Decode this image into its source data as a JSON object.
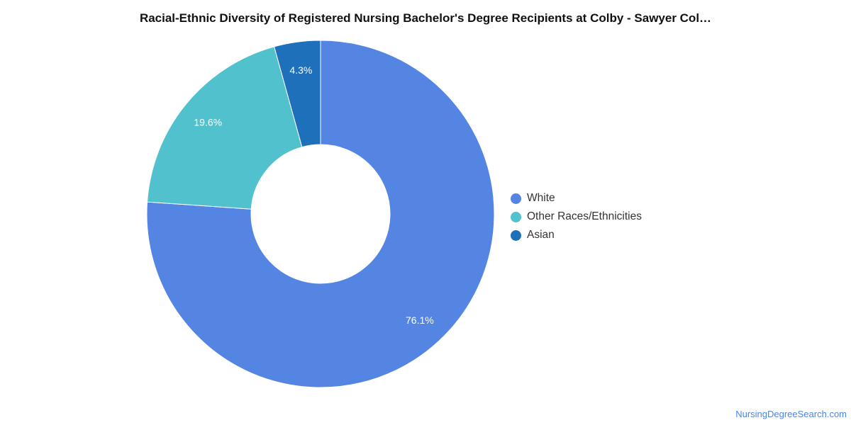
{
  "chart_data": {
    "type": "pie",
    "style": "donut",
    "title": "Racial-Ethnic Diversity of Registered Nursing Bachelor's Degree Recipients at Colby - Sawyer Col…",
    "slices": [
      {
        "label": "White",
        "value": 76.1,
        "display": "76.1%",
        "color": "#5485e2"
      },
      {
        "label": "Other Races/Ethnicities",
        "value": 19.6,
        "display": "19.6%",
        "color": "#51c1cd"
      },
      {
        "label": "Asian",
        "value": 4.3,
        "display": "4.3%",
        "color": "#1f70bb"
      }
    ],
    "legend_position": "right"
  },
  "source": "NursingDegreeSearch.com"
}
